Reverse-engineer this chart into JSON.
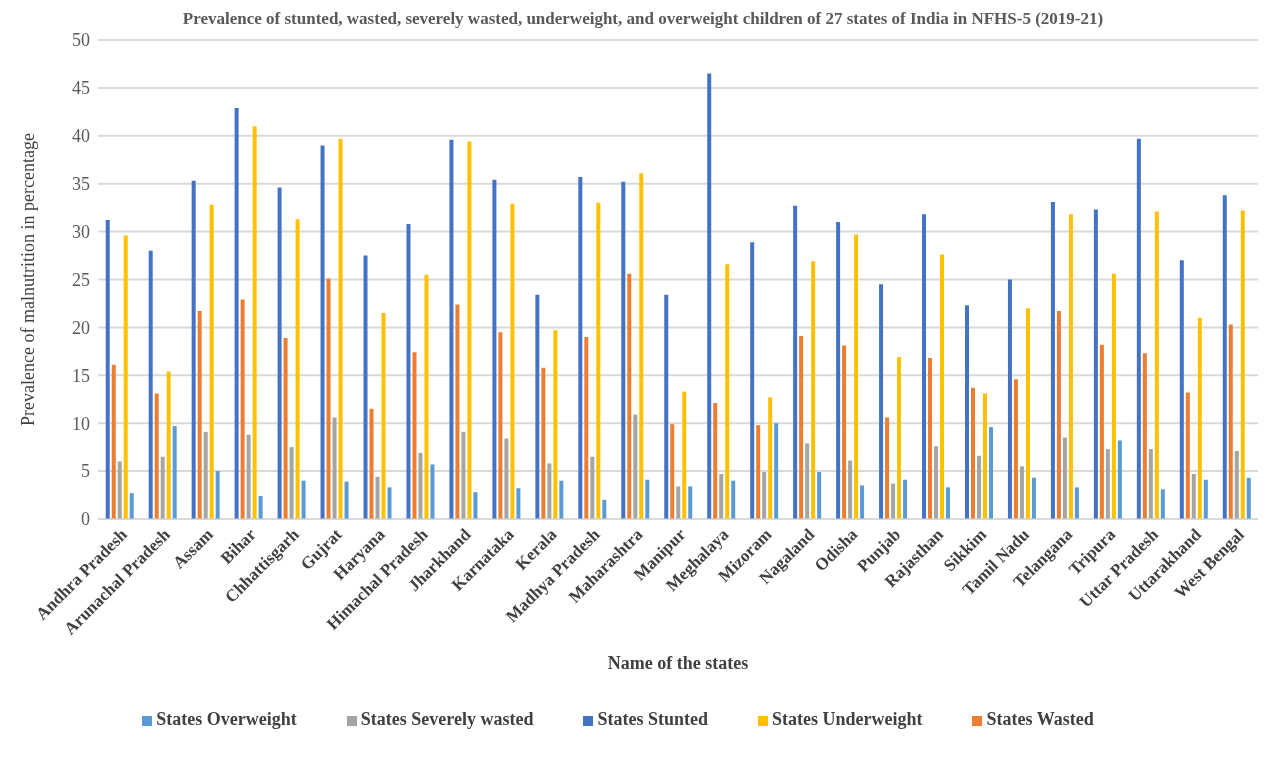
{
  "chart_data": {
    "type": "bar",
    "title": "Prevalence of stunted, wasted, severely wasted, underweight, and overweight children of 27 states of India in NFHS-5 (2019-21)",
    "xlabel": "Name of the states",
    "ylabel": "Prevalence of malnutrition in percentage",
    "categories": [
      "Andhra Pradesh",
      "Arunachal Pradesh",
      "Assam",
      "Bihar",
      "Chhattisgarh",
      "Gujrat",
      "Haryana",
      "Himachal Pradesh",
      "Jharkhand",
      "Karnataka",
      "Kerala",
      "Madhya Pradesh",
      "Maharashtra",
      "Manipur",
      "Meghalaya",
      "Mizoram",
      "Nagaland",
      "Odisha",
      "Punjab",
      "Rajasthan",
      "Sikkim",
      "Tamil Nadu",
      "Telangana",
      "Tripura",
      "Uttar Pradesh",
      "Uttarakhand",
      "West Bengal"
    ],
    "series": [
      {
        "name": "States Stunted",
        "color": "#4472c4",
        "values": [
          31.2,
          28.0,
          35.3,
          42.9,
          34.6,
          39.0,
          27.5,
          30.8,
          39.6,
          35.4,
          23.4,
          35.7,
          35.2,
          23.4,
          46.5,
          28.9,
          32.7,
          31.0,
          24.5,
          31.8,
          22.3,
          25.0,
          33.1,
          32.3,
          39.7,
          27.0,
          33.8
        ]
      },
      {
        "name": "States Wasted",
        "color": "#ed7d31",
        "values": [
          16.1,
          13.1,
          21.7,
          22.9,
          18.9,
          25.1,
          11.5,
          17.4,
          22.4,
          19.5,
          15.8,
          19.0,
          25.6,
          9.9,
          12.1,
          9.8,
          19.1,
          18.1,
          10.6,
          16.8,
          13.7,
          14.6,
          21.7,
          18.2,
          17.3,
          13.2,
          20.3
        ]
      },
      {
        "name": "States Severely wasted",
        "color": "#a5a5a5",
        "values": [
          6.0,
          6.5,
          9.1,
          8.8,
          7.5,
          10.6,
          4.4,
          6.9,
          9.1,
          8.4,
          5.8,
          6.5,
          10.9,
          3.4,
          4.7,
          4.9,
          7.9,
          6.1,
          3.7,
          7.6,
          6.6,
          5.5,
          8.5,
          7.3,
          7.3,
          4.7,
          7.1
        ]
      },
      {
        "name": "States Underweight",
        "color": "#ffc000",
        "values": [
          29.6,
          15.4,
          32.8,
          41.0,
          31.3,
          39.7,
          21.5,
          25.5,
          39.4,
          32.9,
          19.7,
          33.0,
          36.1,
          13.3,
          26.6,
          12.7,
          26.9,
          29.7,
          16.9,
          27.6,
          13.1,
          22.0,
          31.8,
          25.6,
          32.1,
          21.0,
          32.2
        ]
      },
      {
        "name": "States Overweight",
        "color": "#5b9bd5",
        "values": [
          2.7,
          9.7,
          5.0,
          2.4,
          4.0,
          3.9,
          3.3,
          5.7,
          2.8,
          3.2,
          4.0,
          2.0,
          4.1,
          3.4,
          4.0,
          10.0,
          4.9,
          3.5,
          4.1,
          3.3,
          9.6,
          4.3,
          3.3,
          8.2,
          3.1,
          4.1,
          4.3
        ]
      }
    ],
    "ylim": [
      0,
      50
    ],
    "yticks": [
      0,
      5,
      10,
      15,
      20,
      25,
      30,
      35,
      40,
      45,
      50
    ],
    "grid": "y",
    "legend": "bottom"
  }
}
